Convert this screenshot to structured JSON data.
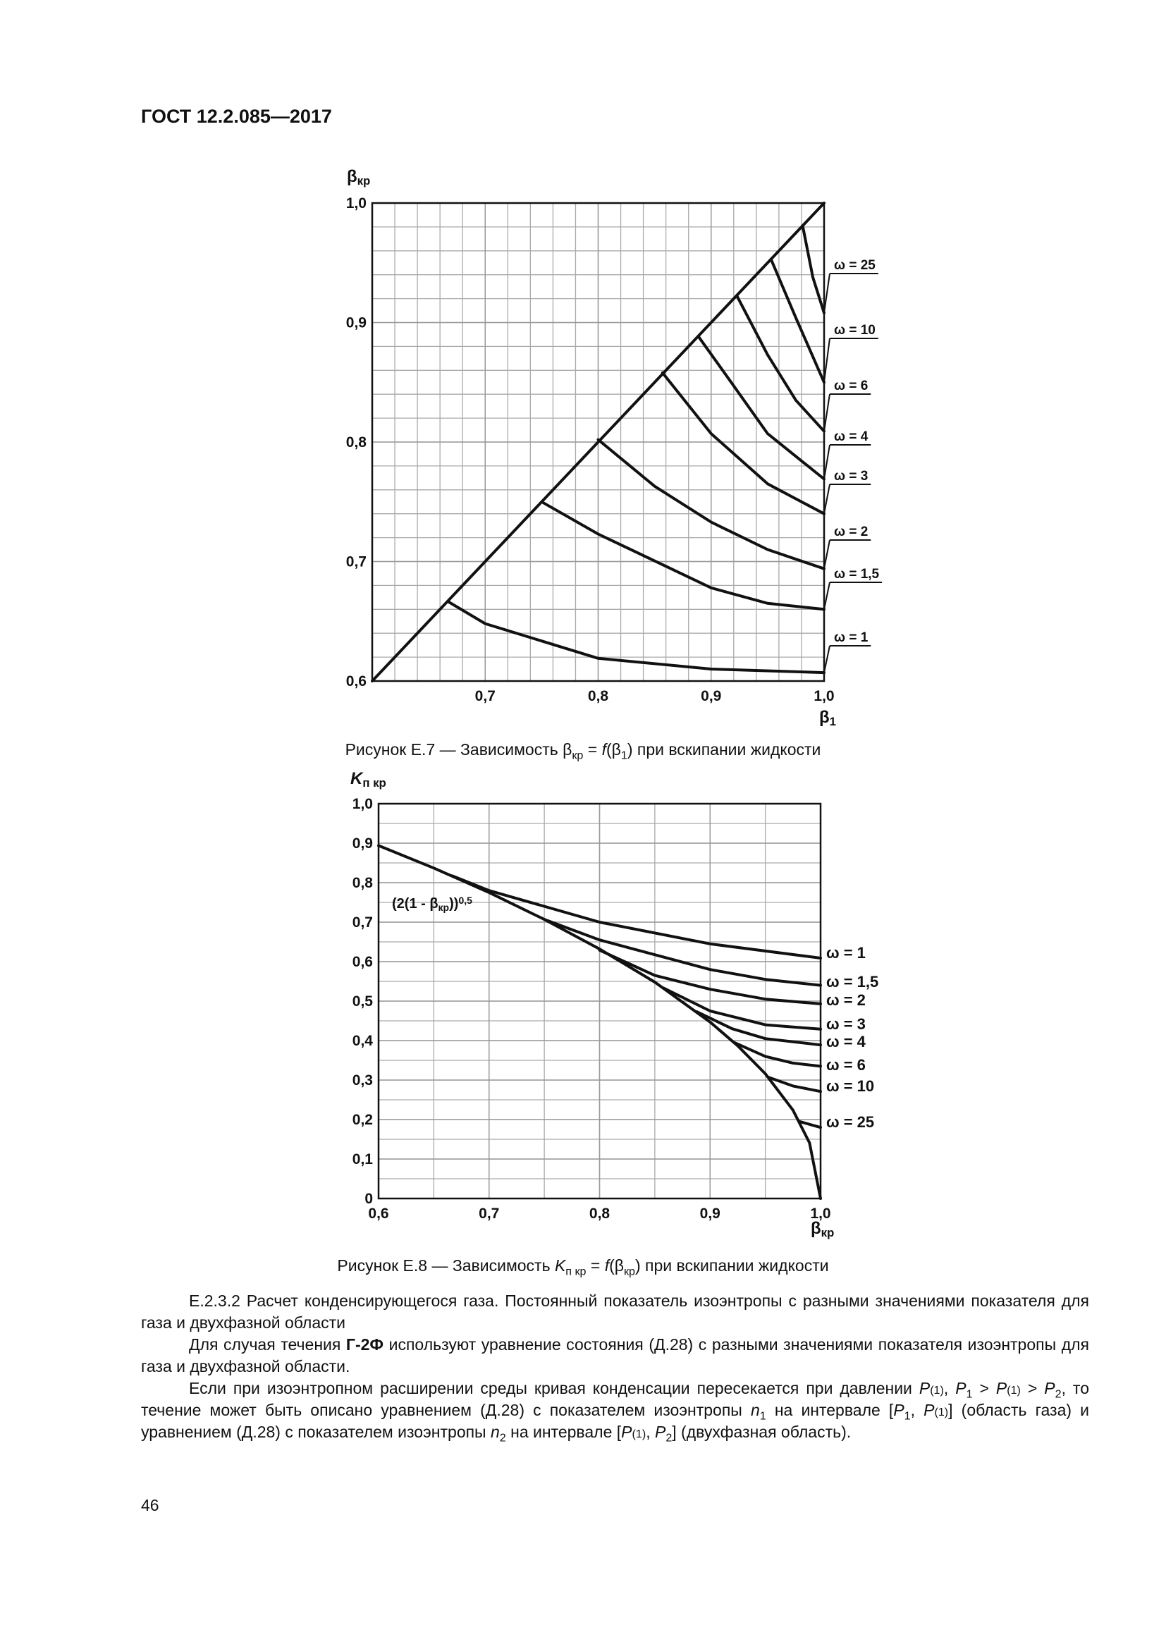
{
  "header": "ГОСТ 12.2.085—2017",
  "chart_data": [
    {
      "type": "line",
      "ylabel": [
        {
          "t": "β"
        },
        {
          "t": "кр",
          "s": "sub"
        }
      ],
      "xlabel": [
        {
          "t": "β"
        },
        {
          "t": "1",
          "s": "sub"
        }
      ],
      "xlim": [
        0.6,
        1.0
      ],
      "ylim": [
        0.6,
        1.0
      ],
      "xticks": [
        {
          "value": 0.7,
          "label": "0,7"
        },
        {
          "value": 0.8,
          "label": "0,8"
        },
        {
          "value": 0.9,
          "label": "0,9"
        },
        {
          "value": 1.0,
          "label": "1,0"
        }
      ],
      "yticks": [
        {
          "value": 0.6,
          "label": "0,6"
        },
        {
          "value": 0.7,
          "label": "0,7"
        },
        {
          "value": 0.8,
          "label": "0,8"
        },
        {
          "value": 0.9,
          "label": "0,9"
        },
        {
          "value": 1.0,
          "label": "1,0"
        }
      ],
      "grid": true,
      "grid_subdivisions": 5,
      "color": "#111111",
      "series": [
        {
          "x": [
            0.6,
            1.0
          ],
          "values": [
            0.6,
            1.0
          ]
        },
        {
          "name": "ω = 1",
          "x": [
            0.668,
            0.7,
            0.8,
            0.9,
            1.0
          ],
          "values": [
            0.666,
            0.648,
            0.619,
            0.61,
            0.607
          ]
        },
        {
          "name": "ω = 1,5",
          "x": [
            0.75,
            0.8,
            0.9,
            0.95,
            1.0
          ],
          "values": [
            0.75,
            0.723,
            0.678,
            0.665,
            0.66
          ]
        },
        {
          "name": "ω = 2",
          "x": [
            0.8,
            0.85,
            0.9,
            0.95,
            1.0
          ],
          "values": [
            0.802,
            0.763,
            0.733,
            0.71,
            0.694
          ]
        },
        {
          "name": "ω = 3",
          "x": [
            0.857,
            0.9,
            0.95,
            1.0
          ],
          "values": [
            0.858,
            0.807,
            0.765,
            0.74
          ]
        },
        {
          "name": "ω = 4",
          "x": [
            0.889,
            0.92,
            0.95,
            1.0
          ],
          "values": [
            0.888,
            0.847,
            0.807,
            0.769
          ]
        },
        {
          "name": "ω = 6",
          "x": [
            0.923,
            0.95,
            0.975,
            1.0
          ],
          "values": [
            0.922,
            0.873,
            0.835,
            0.809
          ]
        },
        {
          "name": "ω = 10",
          "x": [
            0.953,
            0.975,
            1.0
          ],
          "values": [
            0.953,
            0.904,
            0.85
          ]
        },
        {
          "name": "ω = 25",
          "x": [
            0.981,
            0.99,
            1.0
          ],
          "values": [
            0.981,
            0.938,
            0.908
          ]
        }
      ],
      "caption": [
        {
          "t": "Рисунок Е.7 — Зависимость β"
        },
        {
          "t": "кр",
          "s": "sub"
        },
        {
          "t": " = "
        },
        {
          "t": "f",
          "s": "i"
        },
        {
          "t": "(β"
        },
        {
          "t": "1",
          "s": "sub"
        },
        {
          "t": ") при вскипании жидкости"
        }
      ]
    },
    {
      "type": "line",
      "ylabel": [
        {
          "t": "K",
          "s": "i"
        },
        {
          "t": "п кр",
          "s": "sub"
        }
      ],
      "xlabel": [
        {
          "t": "β"
        },
        {
          "t": "кр",
          "s": "sub"
        }
      ],
      "annotation": [
        {
          "t": "(2(1 - β"
        },
        {
          "t": "кр",
          "s": "sub"
        },
        {
          "t": "))"
        },
        {
          "t": "0,5",
          "s": "sup"
        }
      ],
      "xlim": [
        0.6,
        1.0
      ],
      "ylim": [
        0,
        1.0
      ],
      "xticks": [
        {
          "value": 0.6,
          "label": "0,6"
        },
        {
          "value": 0.7,
          "label": "0,7"
        },
        {
          "value": 0.8,
          "label": "0,8"
        },
        {
          "value": 0.9,
          "label": "0,9"
        },
        {
          "value": 1.0,
          "label": "1,0"
        }
      ],
      "yticks": [
        0,
        {
          "value": 0.1,
          "label": "0,1"
        },
        {
          "value": 0.2,
          "label": "0,2"
        },
        {
          "value": 0.3,
          "label": "0,3"
        },
        {
          "value": 0.4,
          "label": "0,4"
        },
        {
          "value": 0.5,
          "label": "0,5"
        },
        {
          "value": 0.6,
          "label": "0,6"
        },
        {
          "value": 0.7,
          "label": "0,7"
        },
        {
          "value": 0.8,
          "label": "0,8"
        },
        {
          "value": 0.9,
          "label": "0,9"
        },
        {
          "value": 1.0,
          "label": "1,0"
        }
      ],
      "grid": true,
      "grid_subdivisions": 2,
      "color": "#111111",
      "series": [
        {
          "x": [
            0.6,
            0.65,
            0.7,
            0.75,
            0.8,
            0.85,
            0.9,
            0.925,
            0.95,
            0.975,
            0.99,
            1.0
          ],
          "values": [
            0.894,
            0.837,
            0.775,
            0.707,
            0.632,
            0.548,
            0.447,
            0.387,
            0.316,
            0.224,
            0.141,
            0
          ]
        },
        {
          "name": "ω = 1",
          "x": [
            0.667,
            0.7,
            0.8,
            0.9,
            1.0
          ],
          "values": [
            0.817,
            0.78,
            0.7,
            0.645,
            0.609
          ]
        },
        {
          "name": "ω = 1,5",
          "x": [
            0.75,
            0.8,
            0.9,
            0.95,
            1.0
          ],
          "values": [
            0.707,
            0.655,
            0.58,
            0.555,
            0.54
          ]
        },
        {
          "name": "ω = 2",
          "x": [
            0.8,
            0.85,
            0.9,
            0.95,
            1.0
          ],
          "values": [
            0.629,
            0.565,
            0.53,
            0.505,
            0.493
          ]
        },
        {
          "name": "ω = 3",
          "x": [
            0.858,
            0.9,
            0.95,
            1.0
          ],
          "values": [
            0.533,
            0.475,
            0.44,
            0.429
          ]
        },
        {
          "name": "ω = 4",
          "x": [
            0.888,
            0.92,
            0.95,
            1.0
          ],
          "values": [
            0.473,
            0.43,
            0.405,
            0.389
          ]
        },
        {
          "name": "ω = 6",
          "x": [
            0.922,
            0.95,
            0.975,
            1.0
          ],
          "values": [
            0.395,
            0.36,
            0.343,
            0.335
          ]
        },
        {
          "name": "ω = 10",
          "x": [
            0.953,
            0.975,
            1.0
          ],
          "values": [
            0.307,
            0.285,
            0.271
          ]
        },
        {
          "name": "ω = 25",
          "x": [
            0.981,
            1.0
          ],
          "values": [
            0.195,
            0.18
          ]
        }
      ],
      "caption": [
        {
          "t": "Рисунок Е.8 — Зависимость "
        },
        {
          "t": "K",
          "s": "i"
        },
        {
          "t": "п кр",
          "s": "sub"
        },
        {
          "t": " = "
        },
        {
          "t": "f",
          "s": "i"
        },
        {
          "t": "(β"
        },
        {
          "t": "кр",
          "s": "sub"
        },
        {
          "t": ") при вскипании жидкости"
        }
      ]
    }
  ],
  "paragraphs": [
    [
      {
        "t": "Е.2.3.2 Расчет конденсирующегося газа. Постоянный показатель изоэнтропы с разными значениями показателя для газа и двухфазной области"
      }
    ],
    [
      {
        "t": "Для случая течения "
      },
      {
        "t": "Г-2Ф",
        "s": "b"
      },
      {
        "t": " используют уравнение состояния (Д.28) с разными значениями показателя изоэнтропы для газа и двухфазной области."
      }
    ],
    [
      {
        "t": "Если при изоэнтропном расширении среды кривая конденсации пересекается при давлении "
      },
      {
        "t": "P",
        "s": "i"
      },
      {
        "t": "(1)",
        "s": "sup"
      },
      {
        "t": ", "
      },
      {
        "t": "P",
        "s": "i"
      },
      {
        "t": "1",
        "s": "sub"
      },
      {
        "t": " > "
      },
      {
        "t": "P",
        "s": "i"
      },
      {
        "t": "(1)",
        "s": "sup"
      },
      {
        "t": " > "
      },
      {
        "t": "P",
        "s": "i"
      },
      {
        "t": "2",
        "s": "sub"
      },
      {
        "t": ", то течение может быть описано уравнением (Д.28) с показателем изоэнтропы "
      },
      {
        "t": "n",
        "s": "i"
      },
      {
        "t": "1",
        "s": "sub"
      },
      {
        "t": " на интервале ["
      },
      {
        "t": "P",
        "s": "i"
      },
      {
        "t": "1",
        "s": "sub"
      },
      {
        "t": ", "
      },
      {
        "t": "P",
        "s": "i"
      },
      {
        "t": "(1)",
        "s": "sup"
      },
      {
        "t": "] (область газа) и уравнением (Д.28) с показателем изоэнтропы "
      },
      {
        "t": "n",
        "s": "i"
      },
      {
        "t": "2",
        "s": "sub"
      },
      {
        "t": " на интервале ["
      },
      {
        "t": "P",
        "s": "i"
      },
      {
        "t": "(1)",
        "s": "sup"
      },
      {
        "t": ", "
      },
      {
        "t": "P",
        "s": "i"
      },
      {
        "t": "2",
        "s": "sub"
      },
      {
        "t": "] (двухфазная область)."
      }
    ]
  ],
  "page_number": "46"
}
